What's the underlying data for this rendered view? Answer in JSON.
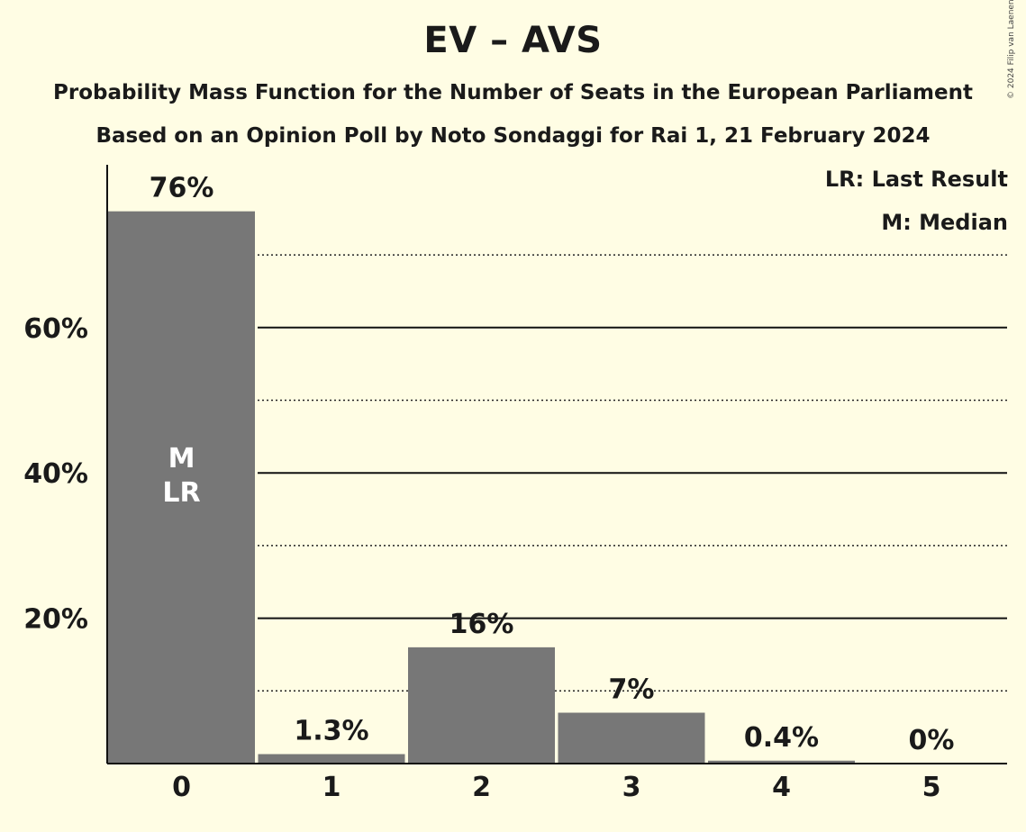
{
  "chart_data": {
    "type": "bar",
    "title": "EV – AVS",
    "subtitle": "Probability Mass Function for the Number of Seats in the European Parliament",
    "subtitle2": "Based on an Opinion Poll by Noto Sondaggi for Rai 1, 21 February 2024",
    "categories": [
      "0",
      "1",
      "2",
      "3",
      "4",
      "5"
    ],
    "values": [
      76,
      1.3,
      16,
      7,
      0.4,
      0
    ],
    "value_labels": [
      "76%",
      "1.3%",
      "16%",
      "7%",
      "0.4%",
      "0%"
    ],
    "bar_markers": [
      "M\nLR",
      "",
      "",
      "",
      "",
      ""
    ],
    "yticks": [
      20,
      40,
      60
    ],
    "ytick_labels": [
      "20%",
      "40%",
      "60%"
    ],
    "minor_gridlines": [
      10,
      30,
      50,
      70
    ],
    "ylim": [
      0,
      80
    ],
    "legend": [
      "LR: Last Result",
      "M: Median"
    ],
    "legend_position": "top-right",
    "bar_color": "#777777",
    "copyright": "© 2024 Filip van Laenen"
  }
}
